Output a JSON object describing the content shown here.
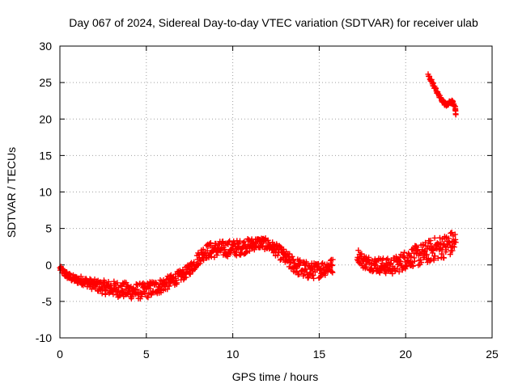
{
  "chart_data": {
    "type": "scatter",
    "title": "Day 067 of 2024, Sidereal Day-to-day VTEC variation (SDTVAR) for receiver ulab",
    "xlabel": "GPS time / hours",
    "ylabel": "SDTVAR / TECUs",
    "xlim": [
      0,
      25
    ],
    "ylim": [
      -10,
      30
    ],
    "xticks": [
      0,
      5,
      10,
      15,
      20,
      25
    ],
    "yticks": [
      -10,
      -5,
      0,
      5,
      10,
      15,
      20,
      25,
      30
    ],
    "grid": true,
    "marker": "+",
    "series": [
      {
        "name": "SDTVAR",
        "color": "#ff0000",
        "center": {
          "x": [
            0.0,
            0.3,
            0.6,
            0.9,
            1.2,
            1.5,
            1.8,
            2.1,
            2.4,
            2.7,
            3.0,
            3.3,
            3.6,
            3.9,
            4.2,
            4.5,
            4.8,
            5.1,
            5.4,
            5.7,
            6.0,
            6.3,
            6.6,
            6.9,
            7.2,
            7.5,
            7.8,
            8.1,
            8.4,
            8.7,
            9.0,
            9.3,
            9.6,
            9.9,
            10.2,
            10.5,
            10.8,
            11.1,
            11.4,
            11.7,
            12.0,
            12.3,
            12.6,
            12.9,
            13.2,
            13.5,
            13.8,
            14.1,
            14.4,
            14.7,
            15.0,
            15.3,
            15.6,
            15.8,
            17.2,
            17.5,
            17.8,
            18.1,
            18.4,
            18.7,
            19.0,
            19.3,
            19.6,
            19.9,
            20.2,
            20.5,
            20.8,
            21.1,
            21.4,
            21.7,
            22.0,
            22.3,
            22.6,
            22.9
          ],
          "y": [
            -0.5,
            -1.2,
            -1.7,
            -2.0,
            -2.1,
            -2.3,
            -2.6,
            -2.8,
            -3.0,
            -3.1,
            -3.2,
            -3.3,
            -3.4,
            -3.5,
            -3.6,
            -3.6,
            -3.6,
            -3.4,
            -3.2,
            -3.0,
            -2.7,
            -2.4,
            -2.0,
            -1.6,
            -1.2,
            -0.6,
            0.2,
            1.2,
            1.8,
            2.0,
            2.1,
            2.2,
            2.2,
            2.3,
            2.3,
            2.4,
            2.6,
            2.8,
            3.0,
            3.0,
            2.8,
            2.4,
            1.9,
            1.3,
            0.6,
            0.1,
            -0.3,
            -0.6,
            -0.8,
            -0.8,
            -0.7,
            -0.4,
            -0.2,
            -0.1,
            1.5,
            0.6,
            0.3,
            0.1,
            0.0,
            -0.1,
            -0.2,
            -0.1,
            0.2,
            0.6,
            1.0,
            1.2,
            1.3,
            1.6,
            1.9,
            2.2,
            2.4,
            2.6,
            2.9,
            3.1
          ],
          "spread": [
            0.4,
            0.5,
            0.5,
            0.5,
            0.6,
            0.6,
            0.7,
            0.8,
            0.9,
            1.0,
            1.0,
            1.1,
            1.1,
            1.1,
            1.1,
            1.1,
            1.1,
            1.1,
            1.1,
            1.0,
            1.0,
            0.9,
            0.9,
            0.8,
            0.8,
            0.8,
            0.9,
            1.0,
            1.0,
            1.1,
            1.1,
            1.1,
            1.1,
            1.1,
            1.1,
            1.0,
            1.0,
            0.9,
            0.8,
            0.8,
            0.8,
            0.8,
            0.9,
            1.0,
            1.1,
            1.1,
            1.2,
            1.2,
            1.2,
            1.1,
            1.1,
            1.1,
            1.0,
            1.0,
            0.9,
            1.0,
            1.0,
            1.0,
            1.1,
            1.1,
            1.1,
            1.2,
            1.2,
            1.3,
            1.3,
            1.4,
            1.5,
            1.5,
            1.6,
            1.6,
            1.6,
            1.6,
            1.7,
            1.7
          ]
        },
        "upper_branch": {
          "x": [
            21.3,
            21.5,
            21.7,
            21.9,
            22.1,
            22.3,
            22.5,
            22.7,
            22.85,
            22.9
          ],
          "y": [
            26.0,
            25.2,
            24.2,
            23.3,
            22.6,
            22.0,
            22.2,
            22.4,
            21.8,
            20.6
          ]
        }
      }
    ]
  }
}
